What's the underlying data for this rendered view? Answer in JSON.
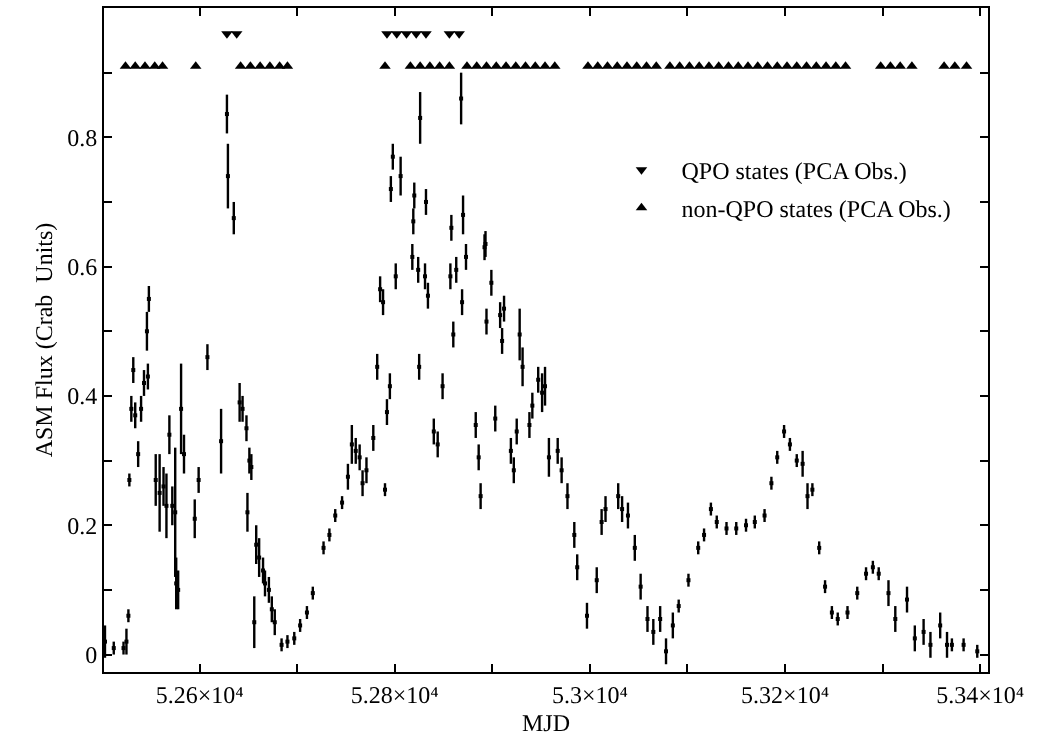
{
  "chart_data": {
    "type": "scatter",
    "xlabel": "MJD",
    "ylabel": "ASM Flux (Crab  Units)",
    "xlim": [
      52502,
      53408
    ],
    "ylim": [
      -0.027,
      1.0
    ],
    "xticks": [
      {
        "value": 52600,
        "label": "5.26×10⁴"
      },
      {
        "value": 52700,
        "label": null
      },
      {
        "value": 52800,
        "label": "5.28×10⁴"
      },
      {
        "value": 52900,
        "label": null
      },
      {
        "value": 53000,
        "label": "5.3×10⁴"
      },
      {
        "value": 53100,
        "label": null
      },
      {
        "value": 53200,
        "label": "5.32×10⁴"
      },
      {
        "value": 53300,
        "label": null
      },
      {
        "value": 53400,
        "label": "5.34×10⁴"
      }
    ],
    "yticks": [
      0,
      {
        "value": 0.1,
        "label": null
      },
      0.2,
      {
        "value": 0.3,
        "label": null
      },
      0.4,
      {
        "value": 0.5,
        "label": null
      },
      0.6,
      {
        "value": 0.7,
        "label": null
      },
      0.8,
      {
        "value": 0.9,
        "label": null
      }
    ],
    "legend": "top right",
    "series": [
      {
        "color": "#000000",
        "marker": "square",
        "x": [
          52503,
          52512,
          52522,
          52525,
          52527,
          52528,
          52530,
          52532,
          52534,
          52537,
          52540,
          52543,
          52546,
          52547,
          52548,
          52555,
          52559,
          52563,
          52566,
          52569,
          52572,
          52575,
          52576,
          52578,
          52581,
          52584,
          52595,
          52599,
          52608,
          52622,
          52628,
          52629,
          52635,
          52641,
          52644,
          52648,
          52649,
          52651,
          52653,
          52656,
          52658,
          52661,
          52665,
          52667,
          52671,
          52674,
          52677,
          52684,
          52690,
          52697,
          52703,
          52710,
          52716,
          52727,
          52733,
          52739,
          52746,
          52752,
          52756,
          52760,
          52764,
          52767,
          52771,
          52778,
          52782,
          52785,
          52788,
          52790,
          52792,
          52795,
          52796,
          52798,
          52801,
          52806,
          52818,
          52819,
          52820,
          52824,
          52825,
          52826,
          52831,
          52832,
          52834,
          52840,
          52844,
          52849,
          52857,
          52858,
          52860,
          52863,
          52868,
          52869,
          52870,
          52873,
          52883,
          52886,
          52888,
          52892,
          52893,
          52894,
          52899,
          52903,
          52908,
          52910,
          52912,
          52919,
          52922,
          52925,
          52928,
          52931,
          52938,
          52941,
          52947,
          52951,
          52954,
          52958,
          52967,
          52971,
          52977,
          52984,
          52987,
          52997,
          53007,
          53012,
          53016,
          53029,
          53033,
          53039,
          53046,
          53052,
          53059,
          53065,
          53072,
          53078,
          53085,
          53091,
          53101,
          53111,
          53117,
          53124,
          53130,
          53140,
          53150,
          53160,
          53169,
          53179,
          53186,
          53192,
          53199,
          53205,
          53212,
          53218,
          53223,
          53228,
          53235,
          53241,
          53248,
          53254,
          53264,
          53274,
          53283,
          53290,
          53296,
          53306,
          53313,
          53325,
          53333,
          53342,
          53349,
          53359,
          53366,
          53371,
          53383,
          53397
        ],
        "values": [
          0.02,
          0.01,
          0.01,
          0.02,
          0.06,
          0.27,
          0.38,
          0.44,
          0.37,
          0.31,
          0.38,
          0.42,
          0.5,
          0.43,
          0.55,
          0.27,
          0.25,
          0.26,
          0.23,
          0.34,
          0.23,
          0.22,
          0.11,
          0.1,
          0.38,
          0.31,
          0.21,
          0.27,
          0.46,
          0.33,
          0.836,
          0.74,
          0.675,
          0.39,
          0.38,
          0.35,
          0.22,
          0.3,
          0.29,
          0.05,
          0.17,
          0.15,
          0.13,
          0.11,
          0.1,
          0.07,
          0.05,
          0.015,
          0.02,
          0.025,
          0.045,
          0.065,
          0.095,
          0.165,
          0.185,
          0.215,
          0.235,
          0.275,
          0.325,
          0.315,
          0.305,
          0.265,
          0.285,
          0.335,
          0.445,
          0.565,
          0.545,
          0.255,
          0.375,
          0.415,
          0.72,
          0.77,
          0.585,
          0.74,
          0.615,
          0.67,
          0.71,
          0.595,
          0.445,
          0.83,
          0.585,
          0.7,
          0.555,
          0.345,
          0.325,
          0.415,
          0.585,
          0.66,
          0.495,
          0.595,
          0.86,
          0.545,
          0.68,
          0.615,
          0.355,
          0.305,
          0.245,
          0.63,
          0.635,
          0.515,
          0.575,
          0.365,
          0.525,
          0.485,
          0.535,
          0.315,
          0.285,
          0.345,
          0.495,
          0.445,
          0.355,
          0.385,
          0.425,
          0.405,
          0.415,
          0.305,
          0.315,
          0.285,
          0.245,
          0.185,
          0.135,
          0.06,
          0.115,
          0.205,
          0.225,
          0.245,
          0.225,
          0.215,
          0.165,
          0.105,
          0.055,
          0.035,
          0.055,
          0.005,
          0.045,
          0.075,
          0.115,
          0.165,
          0.185,
          0.225,
          0.205,
          0.195,
          0.195,
          0.2,
          0.205,
          0.215,
          0.265,
          0.305,
          0.345,
          0.325,
          0.3,
          0.295,
          0.245,
          0.255,
          0.165,
          0.105,
          0.065,
          0.055,
          0.065,
          0.095,
          0.125,
          0.135,
          0.125,
          0.095,
          0.055,
          0.085,
          0.025,
          0.035,
          0.015,
          0.045,
          0.015,
          0.015,
          0.015,
          0.005
        ],
        "errors": [
          0.025,
          0.01,
          0.01,
          0.02,
          0.01,
          0.01,
          0.02,
          0.02,
          0.02,
          0.02,
          0.02,
          0.02,
          0.03,
          0.02,
          0.02,
          0.04,
          0.06,
          0.03,
          0.05,
          0.03,
          0.03,
          0.1,
          0.04,
          0.03,
          0.07,
          0.03,
          0.03,
          0.02,
          0.02,
          0.05,
          0.03,
          0.05,
          0.025,
          0.03,
          0.02,
          0.02,
          0.03,
          0.02,
          0.02,
          0.04,
          0.03,
          0.03,
          0.02,
          0.02,
          0.02,
          0.02,
          0.02,
          0.01,
          0.01,
          0.01,
          0.01,
          0.01,
          0.01,
          0.01,
          0.01,
          0.01,
          0.01,
          0.02,
          0.03,
          0.02,
          0.02,
          0.02,
          0.02,
          0.02,
          0.02,
          0.02,
          0.02,
          0.01,
          0.02,
          0.02,
          0.02,
          0.02,
          0.02,
          0.03,
          0.02,
          0.02,
          0.02,
          0.02,
          0.02,
          0.04,
          0.02,
          0.02,
          0.02,
          0.02,
          0.02,
          0.02,
          0.02,
          0.02,
          0.02,
          0.02,
          0.04,
          0.02,
          0.03,
          0.02,
          0.02,
          0.02,
          0.02,
          0.02,
          0.02,
          0.02,
          0.02,
          0.02,
          0.02,
          0.02,
          0.02,
          0.02,
          0.02,
          0.02,
          0.04,
          0.03,
          0.02,
          0.02,
          0.02,
          0.03,
          0.03,
          0.03,
          0.02,
          0.02,
          0.02,
          0.02,
          0.02,
          0.02,
          0.02,
          0.02,
          0.02,
          0.02,
          0.02,
          0.02,
          0.02,
          0.02,
          0.02,
          0.02,
          0.02,
          0.02,
          0.02,
          0.01,
          0.01,
          0.01,
          0.01,
          0.01,
          0.01,
          0.01,
          0.01,
          0.01,
          0.01,
          0.01,
          0.01,
          0.01,
          0.01,
          0.01,
          0.01,
          0.02,
          0.02,
          0.01,
          0.01,
          0.01,
          0.01,
          0.01,
          0.01,
          0.01,
          0.01,
          0.01,
          0.01,
          0.02,
          0.02,
          0.02,
          0.02,
          0.02,
          0.02,
          0.02,
          0.02,
          0.01,
          0.01,
          0.01
        ]
      },
      {
        "name": "QPO states (PCA Obs.)",
        "color": "#000000",
        "marker": "triangle",
        "x": [
          52628,
          52638,
          52792,
          52802,
          52812,
          52822,
          52832,
          52856,
          52866
        ],
        "values": [
          0.96,
          0.96,
          0.96,
          0.96,
          0.96,
          0.96,
          0.96,
          0.96,
          0.96
        ]
      },
      {
        "name": "non-QPO states (PCA Obs.)",
        "color": "#000000",
        "marker": "triangle",
        "x": [
          52524,
          52534,
          52544,
          52554,
          52562,
          52596,
          52642,
          52652,
          52662,
          52672,
          52682,
          52690,
          52790,
          52816,
          52826,
          52836,
          52846,
          52856,
          52874,
          52884,
          52894,
          52904,
          52914,
          52924,
          52934,
          52944,
          52954,
          52964,
          52998,
          53008,
          53018,
          53028,
          53038,
          53048,
          53058,
          53068,
          53082,
          53092,
          53102,
          53112,
          53122,
          53132,
          53142,
          53152,
          53162,
          53172,
          53182,
          53192,
          53202,
          53212,
          53222,
          53232,
          53242,
          53252,
          53262,
          53298,
          53308,
          53318,
          53330,
          53363,
          53374,
          53386
        ],
        "values": [
          0.91,
          0.91,
          0.91,
          0.91,
          0.91,
          0.91,
          0.91,
          0.91,
          0.91,
          0.91,
          0.91,
          0.91,
          0.91,
          0.91,
          0.91,
          0.91,
          0.91,
          0.91,
          0.91,
          0.91,
          0.91,
          0.91,
          0.91,
          0.91,
          0.91,
          0.91,
          0.91,
          0.91,
          0.91,
          0.91,
          0.91,
          0.91,
          0.91,
          0.91,
          0.91,
          0.91,
          0.91,
          0.91,
          0.91,
          0.91,
          0.91,
          0.91,
          0.91,
          0.91,
          0.91,
          0.91,
          0.91,
          0.91,
          0.91,
          0.91,
          0.91,
          0.91,
          0.91,
          0.91,
          0.91,
          0.91,
          0.91,
          0.91,
          0.91,
          0.91,
          0.91,
          0.91
        ]
      }
    ]
  }
}
